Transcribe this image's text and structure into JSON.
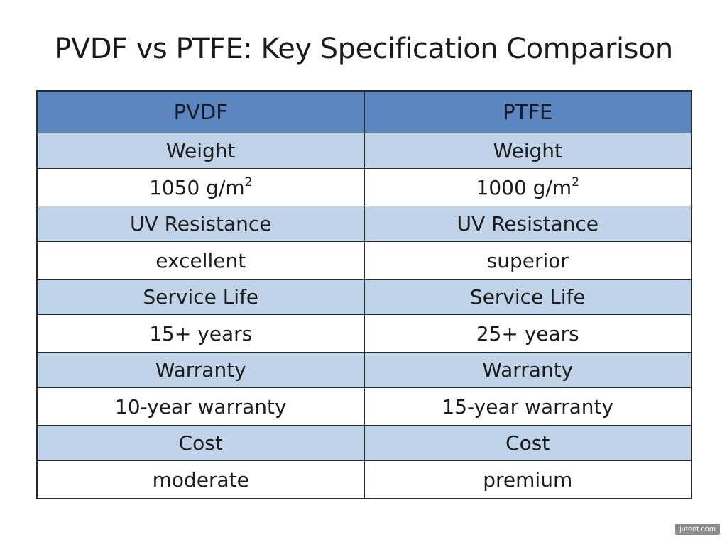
{
  "chart_data": {
    "type": "table",
    "title": "PVDF vs PTFE: Key Specification Comparison",
    "columns": [
      "PVDF",
      "PTFE"
    ],
    "rows": [
      {
        "label_left": "Weight",
        "label_right": "Weight",
        "left": "1050 g/m",
        "left_sup": "2",
        "right": "1000 g/m",
        "right_sup": "2"
      },
      {
        "label_left": "UV Resistance",
        "label_right": "UV Resistance",
        "left": "excellent",
        "left_sup": "",
        "right": "superior",
        "right_sup": ""
      },
      {
        "label_left": "Service Life",
        "label_right": "Service Life",
        "left": "15+ years",
        "left_sup": "",
        "right": "25+ years",
        "right_sup": ""
      },
      {
        "label_left": "Warranty",
        "label_right": "Warranty",
        "left": "10-year warranty",
        "left_sup": "",
        "right": "15-year warranty",
        "right_sup": ""
      },
      {
        "label_left": "Cost",
        "label_right": "Cost",
        "left": "moderate",
        "left_sup": "",
        "right": "premium",
        "right_sup": ""
      }
    ]
  },
  "watermark": "jutent.com",
  "colors": {
    "header_bg": "#5b86bf",
    "label_row_bg": "#c1d3e8",
    "value_row_bg": "#ffffff",
    "border": "#2a2a2a"
  }
}
